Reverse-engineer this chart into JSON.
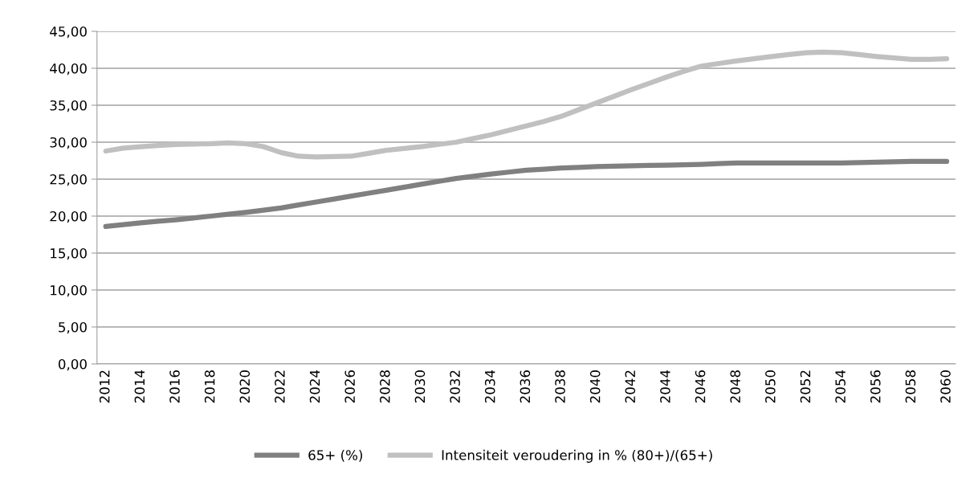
{
  "chart_data": {
    "type": "line",
    "categories": [
      "2012",
      null,
      "2014",
      null,
      "2016",
      null,
      "2018",
      null,
      "2020",
      null,
      "2022",
      null,
      "2024",
      null,
      "2026",
      null,
      "2028",
      null,
      "2030",
      null,
      "2032",
      null,
      "2034",
      null,
      "2036",
      null,
      "2038",
      null,
      "2040",
      null,
      "2042",
      null,
      "2044",
      null,
      "2046",
      null,
      "2048",
      null,
      "2050",
      null,
      "2052",
      null,
      "2054",
      null,
      "2056",
      null,
      "2058",
      null,
      "2060"
    ],
    "series": [
      {
        "name": "65+ (%)",
        "color": "#808080",
        "values": [
          18.6,
          18.85,
          19.1,
          19.3,
          19.5,
          19.75,
          20.0,
          20.25,
          20.5,
          20.8,
          21.1,
          21.5,
          21.9,
          22.3,
          22.7,
          23.1,
          23.5,
          23.9,
          24.3,
          24.7,
          25.1,
          25.4,
          25.7,
          25.95,
          26.2,
          26.35,
          26.5,
          26.6,
          26.7,
          26.75,
          26.8,
          26.85,
          26.9,
          26.95,
          27.0,
          27.1,
          27.2,
          27.2,
          27.2,
          27.2,
          27.2,
          27.2,
          27.2,
          27.25,
          27.3,
          27.35,
          27.4,
          27.4,
          27.4
        ]
      },
      {
        "name": "Intensiteit veroudering in % (80+)/(65+)",
        "color": "#c0c0c0",
        "values": [
          28.8,
          29.2,
          29.4,
          29.55,
          29.7,
          29.75,
          29.8,
          29.9,
          29.8,
          29.4,
          28.6,
          28.1,
          28.0,
          28.05,
          28.1,
          28.5,
          28.9,
          29.15,
          29.4,
          29.7,
          30.0,
          30.5,
          31.0,
          31.6,
          32.2,
          32.8,
          33.5,
          34.4,
          35.3,
          36.2,
          37.1,
          37.95,
          38.8,
          39.6,
          40.3,
          40.65,
          41.0,
          41.3,
          41.6,
          41.85,
          42.1,
          42.2,
          42.1,
          41.85,
          41.6,
          41.4,
          41.2,
          41.2,
          41.3
        ]
      }
    ],
    "ylim": [
      0,
      45
    ],
    "yticks": [
      {
        "value": 0,
        "label": "0,00"
      },
      {
        "value": 5,
        "label": "5,00"
      },
      {
        "value": 10,
        "label": "10,00"
      },
      {
        "value": 15,
        "label": "15,00"
      },
      {
        "value": 20,
        "label": "20,00"
      },
      {
        "value": 25,
        "label": "25,00"
      },
      {
        "value": 30,
        "label": "30,00"
      },
      {
        "value": 35,
        "label": "35,00"
      },
      {
        "value": 40,
        "label": "40,00"
      },
      {
        "value": 45,
        "label": "45,00"
      }
    ],
    "grid": "y",
    "legend": "bottom",
    "marker": "none",
    "line_style": "solid"
  }
}
